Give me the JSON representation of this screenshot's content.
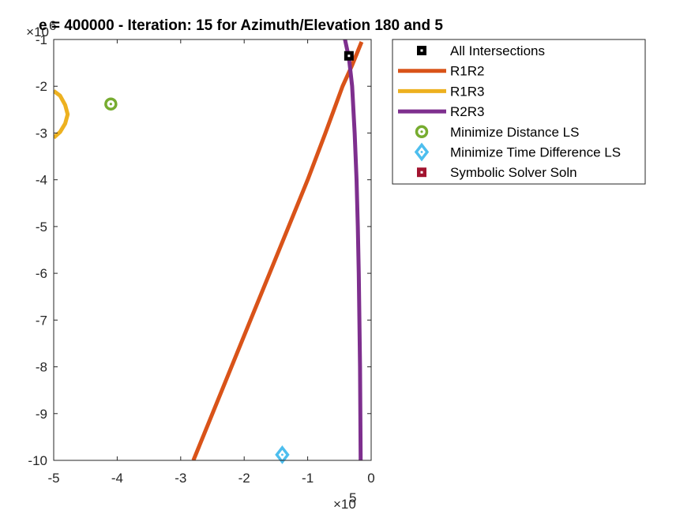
{
  "chart_data": {
    "type": "line",
    "title": "e = 400000 - Iteration: 15 for Azimuth/Elevation 180 and 5",
    "xlabel": "",
    "ylabel": "",
    "xlim": [
      -500000,
      0
    ],
    "ylim": [
      -10000000,
      -1000000
    ],
    "x_ticks": [
      -500000,
      -400000,
      -300000,
      -200000,
      -100000,
      0
    ],
    "x_tick_labels": [
      "-5",
      "-4",
      "-3",
      "-2",
      "-1",
      "0"
    ],
    "y_ticks": [
      -1000000,
      -2000000,
      -3000000,
      -4000000,
      -5000000,
      -6000000,
      -7000000,
      -8000000,
      -9000000,
      -10000000
    ],
    "y_tick_labels": [
      "-1",
      "-2",
      "-3",
      "-4",
      "-5",
      "-6",
      "-7",
      "-8",
      "-9",
      "-10"
    ],
    "x_exponent": {
      "base": "×10",
      "power": "5"
    },
    "y_exponent": {
      "base": "×10",
      "power": "6"
    },
    "grid": false,
    "legend_position": "outside-right",
    "series": [
      {
        "name": "All Intersections",
        "kind": "marker",
        "marker": "square",
        "color": "#000000",
        "points": [
          [
            -35000,
            -1350000
          ]
        ]
      },
      {
        "name": "R1R2",
        "kind": "line",
        "color": "#D95319",
        "points": [
          [
            -280000,
            -10000000
          ],
          [
            -250000,
            -9000000
          ],
          [
            -220000,
            -8000000
          ],
          [
            -190000,
            -7000000
          ],
          [
            -160000,
            -6000000
          ],
          [
            -130000,
            -5000000
          ],
          [
            -100000,
            -4000000
          ],
          [
            -72000,
            -3000000
          ],
          [
            -45000,
            -2000000
          ],
          [
            -30000,
            -1550000
          ],
          [
            -15000,
            -1050000
          ]
        ]
      },
      {
        "name": "R1R3",
        "kind": "line",
        "color": "#EDB120",
        "points": [
          [
            -500000,
            -2100000
          ],
          [
            -490000,
            -2200000
          ],
          [
            -482000,
            -2400000
          ],
          [
            -478000,
            -2600000
          ],
          [
            -482000,
            -2800000
          ],
          [
            -490000,
            -2980000
          ],
          [
            -500000,
            -3100000
          ]
        ]
      },
      {
        "name": "R2R3",
        "kind": "line",
        "color": "#7E2F8E",
        "points": [
          [
            -42000,
            -950000
          ],
          [
            -35000,
            -1400000
          ],
          [
            -30000,
            -2000000
          ],
          [
            -26000,
            -3000000
          ],
          [
            -23000,
            -4000000
          ],
          [
            -21000,
            -5000000
          ],
          [
            -19500,
            -6000000
          ],
          [
            -18500,
            -7000000
          ],
          [
            -17500,
            -8000000
          ],
          [
            -17000,
            -9000000
          ],
          [
            -16500,
            -10000000
          ]
        ]
      },
      {
        "name": "Minimize Distance LS",
        "kind": "marker",
        "marker": "circle",
        "color": "#77AC30",
        "points": [
          [
            -410000,
            -2380000
          ]
        ]
      },
      {
        "name": "Minimize Time Difference LS",
        "kind": "marker",
        "marker": "diamond",
        "color": "#4DBEEE",
        "points": [
          [
            -140000,
            -9880000
          ]
        ]
      },
      {
        "name": "Symbolic Solver Soln",
        "kind": "marker",
        "marker": "square",
        "color": "#A2142F",
        "points": []
      }
    ]
  }
}
